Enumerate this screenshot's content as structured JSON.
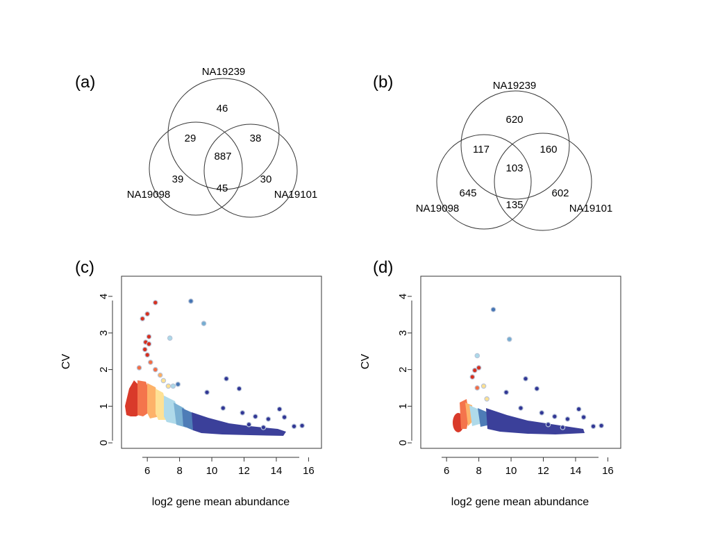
{
  "chart_data": [
    {
      "panel": "(a)",
      "type": "venn",
      "sets": [
        "NA19239",
        "NA19098",
        "NA19101"
      ],
      "regions": {
        "NA19239_only": 46,
        "NA19098_only": 39,
        "NA19101_only": 30,
        "NA19239_NA19098": 29,
        "NA19239_NA19101": 38,
        "NA19098_NA19101": 45,
        "all_three": 887
      }
    },
    {
      "panel": "(b)",
      "type": "venn",
      "sets": [
        "NA19239",
        "NA19098",
        "NA19101"
      ],
      "regions": {
        "NA19239_only": 620,
        "NA19098_only": 645,
        "NA19101_only": 602,
        "NA19239_NA19098": 117,
        "NA19239_NA19101": 160,
        "NA19098_NA19101": 135,
        "all_three": 103
      }
    },
    {
      "panel": "(c)",
      "type": "scatter",
      "xlabel": "log2 gene mean abundance",
      "ylabel": "CV",
      "xlim": [
        4.4,
        16.8
      ],
      "ylim": [
        -0.15,
        4.55
      ],
      "xticks": [
        6,
        8,
        10,
        12,
        14,
        16
      ],
      "yticks": [
        0,
        1,
        2,
        3,
        4
      ],
      "color_scale": [
        "#d7301f",
        "#f46d43",
        "#fdae61",
        "#fee090",
        "#abd9e9",
        "#74add1",
        "#4575b4",
        "#313695"
      ],
      "points": [
        {
          "x": 6.5,
          "y": 3.83,
          "c": 0
        },
        {
          "x": 8.7,
          "y": 3.87,
          "c": 6
        },
        {
          "x": 5.7,
          "y": 3.39,
          "c": 0
        },
        {
          "x": 6.0,
          "y": 3.52,
          "c": 0
        },
        {
          "x": 9.5,
          "y": 3.26,
          "c": 5
        },
        {
          "x": 7.4,
          "y": 2.86,
          "c": 4
        },
        {
          "x": 6.1,
          "y": 2.9,
          "c": 0
        },
        {
          "x": 5.9,
          "y": 2.75,
          "c": 0
        },
        {
          "x": 6.1,
          "y": 2.7,
          "c": 0
        },
        {
          "x": 5.85,
          "y": 2.55,
          "c": 0
        },
        {
          "x": 6.0,
          "y": 2.4,
          "c": 0
        },
        {
          "x": 6.2,
          "y": 2.2,
          "c": 1
        },
        {
          "x": 5.5,
          "y": 2.05,
          "c": 1
        },
        {
          "x": 6.5,
          "y": 2.0,
          "c": 1
        },
        {
          "x": 6.8,
          "y": 1.85,
          "c": 2
        },
        {
          "x": 7.0,
          "y": 1.7,
          "c": 3
        },
        {
          "x": 7.3,
          "y": 1.55,
          "c": 3
        },
        {
          "x": 7.6,
          "y": 1.55,
          "c": 4
        },
        {
          "x": 7.9,
          "y": 1.6,
          "c": 6
        },
        {
          "x": 9.7,
          "y": 1.38,
          "c": 7
        },
        {
          "x": 10.9,
          "y": 1.75,
          "c": 7
        },
        {
          "x": 11.7,
          "y": 1.48,
          "c": 7
        },
        {
          "x": 10.7,
          "y": 0.95,
          "c": 7
        },
        {
          "x": 11.9,
          "y": 0.82,
          "c": 7
        },
        {
          "x": 12.7,
          "y": 0.72,
          "c": 7
        },
        {
          "x": 13.5,
          "y": 0.65,
          "c": 7
        },
        {
          "x": 14.2,
          "y": 0.92,
          "c": 7
        },
        {
          "x": 14.5,
          "y": 0.7,
          "c": 7
        },
        {
          "x": 15.1,
          "y": 0.45,
          "c": 7
        },
        {
          "x": 15.6,
          "y": 0.47,
          "c": 7
        },
        {
          "x": 13.2,
          "y": 0.42,
          "c": 7
        },
        {
          "x": 12.3,
          "y": 0.5,
          "c": 7
        }
      ]
    },
    {
      "panel": "(d)",
      "type": "scatter",
      "xlabel": "log2 gene mean abundance",
      "ylabel": "CV",
      "xlim": [
        4.4,
        16.8
      ],
      "ylim": [
        -0.15,
        4.55
      ],
      "xticks": [
        6,
        8,
        10,
        12,
        14,
        16
      ],
      "yticks": [
        0,
        1,
        2,
        3,
        4
      ],
      "color_scale": [
        "#d7301f",
        "#f46d43",
        "#fdae61",
        "#fee090",
        "#abd9e9",
        "#74add1",
        "#4575b4",
        "#313695"
      ],
      "points": [
        {
          "x": 8.9,
          "y": 3.64,
          "c": 6
        },
        {
          "x": 9.9,
          "y": 2.83,
          "c": 5
        },
        {
          "x": 7.9,
          "y": 2.38,
          "c": 4
        },
        {
          "x": 8.0,
          "y": 2.05,
          "c": 0
        },
        {
          "x": 7.75,
          "y": 1.98,
          "c": 0
        },
        {
          "x": 7.6,
          "y": 1.8,
          "c": 0
        },
        {
          "x": 7.9,
          "y": 1.5,
          "c": 1
        },
        {
          "x": 8.3,
          "y": 1.55,
          "c": 3
        },
        {
          "x": 8.5,
          "y": 1.2,
          "c": 3
        },
        {
          "x": 10.9,
          "y": 1.75,
          "c": 7
        },
        {
          "x": 11.6,
          "y": 1.48,
          "c": 7
        },
        {
          "x": 9.7,
          "y": 1.38,
          "c": 7
        },
        {
          "x": 10.6,
          "y": 0.95,
          "c": 7
        },
        {
          "x": 11.9,
          "y": 0.82,
          "c": 7
        },
        {
          "x": 12.7,
          "y": 0.72,
          "c": 7
        },
        {
          "x": 13.5,
          "y": 0.65,
          "c": 7
        },
        {
          "x": 14.2,
          "y": 0.92,
          "c": 7
        },
        {
          "x": 14.5,
          "y": 0.7,
          "c": 7
        },
        {
          "x": 15.1,
          "y": 0.45,
          "c": 7
        },
        {
          "x": 15.6,
          "y": 0.47,
          "c": 7
        },
        {
          "x": 13.2,
          "y": 0.42,
          "c": 7
        },
        {
          "x": 12.3,
          "y": 0.5,
          "c": 7
        }
      ]
    }
  ]
}
